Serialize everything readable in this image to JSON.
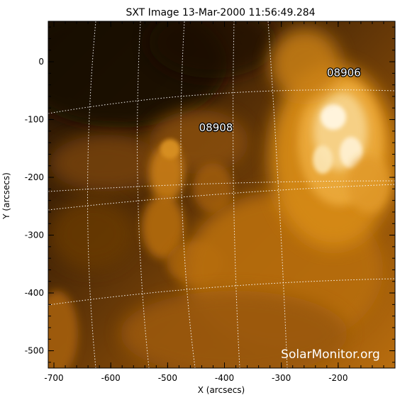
{
  "title": "SXT Image 13-Mar-2000 11:56:49.284",
  "xlabel": "X (arcsecs)",
  "ylabel": "Y (arcsecs)",
  "x_ticks": [
    "-700",
    "-600",
    "-500",
    "-400",
    "-300",
    "-200"
  ],
  "y_ticks": [
    "0",
    "-100",
    "-200",
    "-300",
    "-400",
    "-500"
  ],
  "x_range": [
    -710,
    -100
  ],
  "y_range": [
    -530,
    70
  ],
  "active_regions": [
    {
      "label": "08906",
      "x": -190,
      "y": -25
    },
    {
      "label": "08908",
      "x": -415,
      "y": -120
    }
  ],
  "watermark": "SolarMonitor.org",
  "colors": {
    "emission_bright": "#fff4dc",
    "emission_mid": "#d98a16",
    "emission_dark": "#2a1604",
    "grid": "#ffffff"
  }
}
